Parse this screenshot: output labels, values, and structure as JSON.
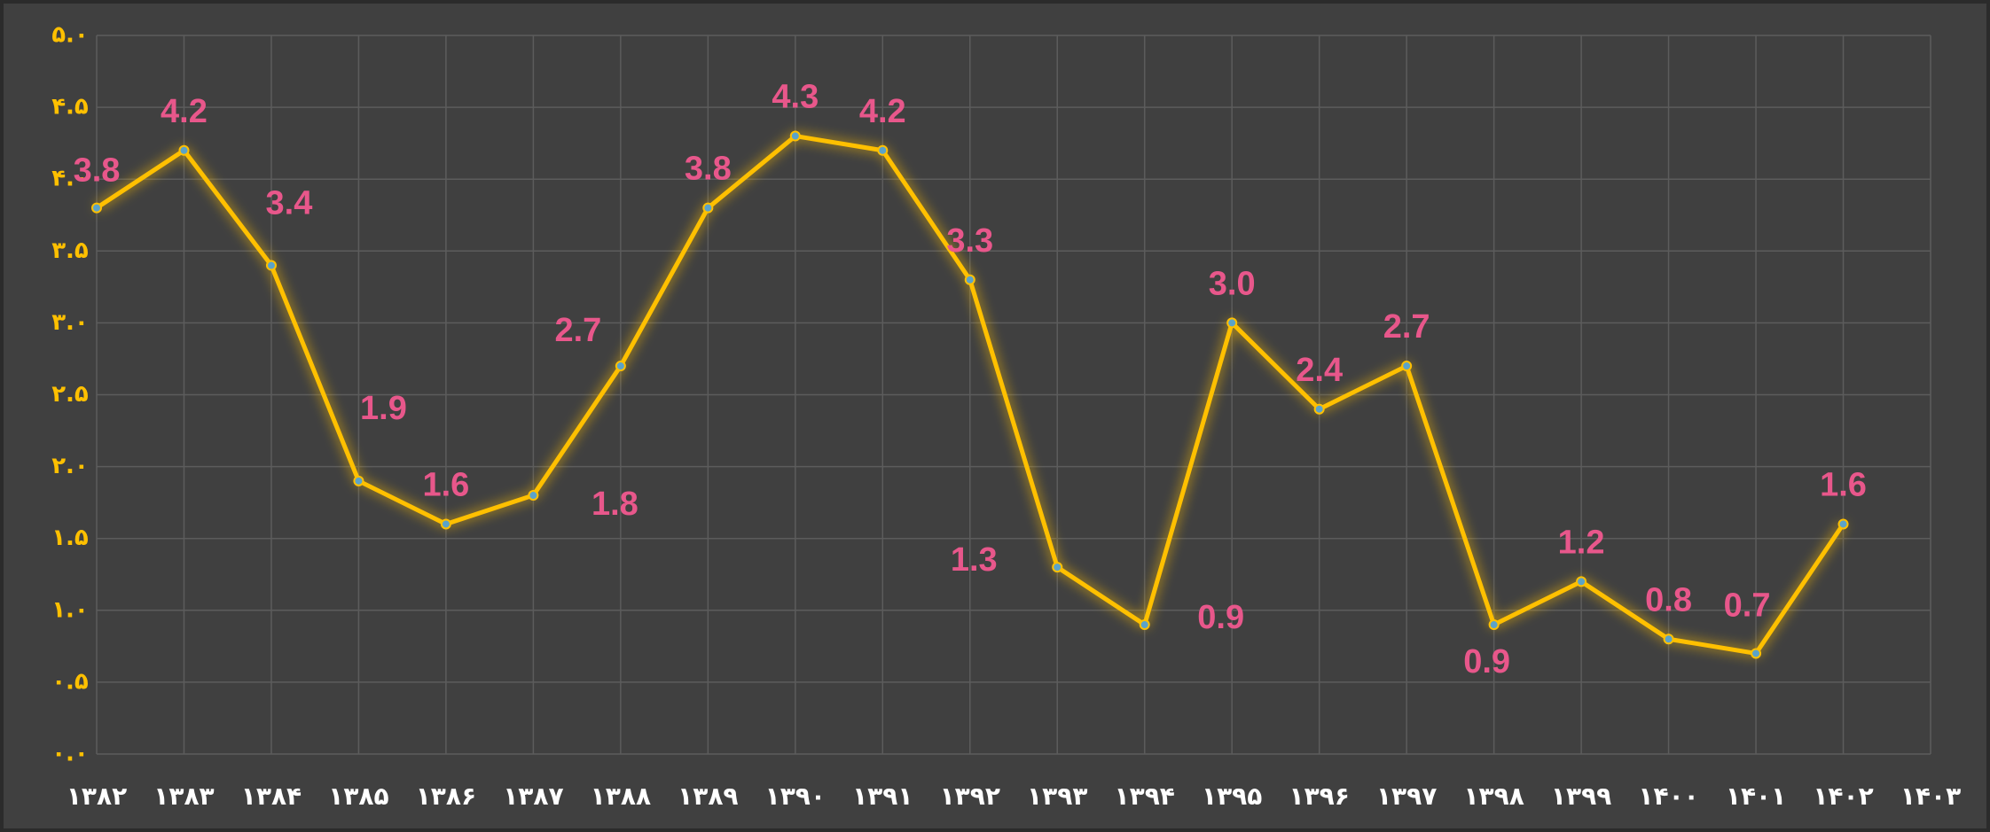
{
  "chart_data": {
    "type": "line",
    "categories": [
      "۱۳۸۲",
      "۱۳۸۳",
      "۱۳۸۴",
      "۱۳۸۵",
      "۱۳۸۶",
      "۱۳۸۷",
      "۱۳۸۸",
      "۱۳۸۹",
      "۱۳۹۰",
      "۱۳۹۱",
      "۱۳۹۲",
      "۱۳۹۳",
      "۱۳۹۴",
      "۱۳۹۵",
      "۱۳۹۶",
      "۱۳۹۷",
      "۱۳۹۸",
      "۱۳۹۹",
      "۱۴۰۰",
      "۱۴۰۱",
      "۱۴۰۲",
      "۱۴۰۳"
    ],
    "values": [
      3.8,
      4.2,
      3.4,
      1.9,
      1.6,
      1.8,
      2.7,
      3.8,
      4.3,
      4.2,
      3.3,
      1.3,
      0.9,
      3.0,
      2.4,
      2.7,
      0.9,
      1.2,
      0.8,
      0.7,
      1.6,
      null
    ],
    "value_labels": [
      "3.8",
      "4.2",
      "3.4",
      "1.9",
      "1.6",
      "1.8",
      "2.7",
      "3.8",
      "4.3",
      "4.2",
      "3.3",
      "1.3",
      "0.9",
      "3.0",
      "2.4",
      "2.7",
      "0.9",
      "1.2",
      "0.8",
      "0.7",
      "1.6",
      null
    ],
    "color": "#ffc000",
    "ylim": [
      0,
      5
    ],
    "yticks": [
      {
        "value": 0,
        "label": "۰.۰"
      },
      {
        "value": 0.5,
        "label": "۰.۵"
      },
      {
        "value": 1,
        "label": "۱.۰"
      },
      {
        "value": 1.5,
        "label": "۱.۵"
      },
      {
        "value": 2,
        "label": "۲.۰"
      },
      {
        "value": 2.5,
        "label": "۲.۵"
      },
      {
        "value": 3,
        "label": "۳.۰"
      },
      {
        "value": 3.5,
        "label": "۳.۵"
      },
      {
        "value": 4,
        "label": "۴.۰"
      },
      {
        "value": 4.5,
        "label": "۴.۵"
      },
      {
        "value": 5,
        "label": "۵.۰"
      }
    ],
    "grid": true
  }
}
